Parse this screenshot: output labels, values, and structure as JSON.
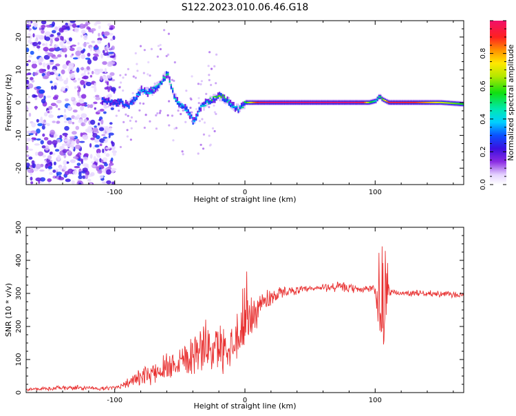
{
  "title": "S122.2023.010.06.46.G18",
  "chart_data": [
    {
      "type": "heatmap",
      "xlabel": "Height of straight line (km)",
      "ylabel": "Frequency (Hz)",
      "xlim": [
        -168,
        168
      ],
      "ylim": [
        -25,
        25
      ],
      "x_tick_labels": [
        "-100",
        "0",
        "100"
      ],
      "x_ticks": [
        -100,
        0,
        100
      ],
      "y_tick_labels": [
        "-20",
        "-10",
        "0",
        "10",
        "20"
      ],
      "y_ticks": [
        -20,
        -10,
        0,
        10,
        20
      ],
      "colorbar": {
        "label": "Normalized spectral amplitude",
        "range": [
          0,
          1
        ],
        "tick_labels": [
          "0.0",
          "0.2",
          "0.4",
          "0.6",
          "0.8"
        ],
        "ticks": [
          0.0,
          0.2,
          0.4,
          0.6,
          0.8
        ]
      },
      "ridge": {
        "x": [
          -140,
          -100,
          -95,
          -90,
          -85,
          -80,
          -75,
          -70,
          -65,
          -60,
          -55,
          -50,
          -45,
          -40,
          -35,
          -30,
          -25,
          -20,
          -15,
          -10,
          -5,
          0,
          5,
          10,
          20,
          40,
          60,
          80,
          90,
          95,
          100,
          103,
          105,
          110,
          130,
          150,
          168
        ],
        "freq": [
          2,
          0,
          0,
          -1,
          1,
          4,
          3,
          4,
          6,
          9,
          2,
          -1,
          -2,
          -6,
          -2,
          0,
          1,
          2,
          1,
          -1,
          -2,
          0,
          0,
          0,
          0,
          0,
          0,
          0,
          0,
          0,
          0.5,
          2,
          1,
          0,
          0,
          0,
          -0.5
        ],
        "amplitude": [
          0.25,
          0.2,
          0.3,
          0.3,
          0.35,
          0.4,
          0.4,
          0.45,
          0.45,
          0.5,
          0.45,
          0.4,
          0.4,
          0.35,
          0.4,
          0.45,
          0.55,
          0.6,
          0.5,
          0.4,
          0.45,
          0.55,
          0.8,
          0.95,
          1.0,
          1.0,
          1.0,
          1.0,
          0.95,
          0.6,
          0.45,
          0.5,
          0.6,
          0.95,
          0.9,
          0.7,
          0.55
        ]
      }
    },
    {
      "type": "line",
      "xlabel": "Height of straight line (km)",
      "ylabel": "SNR (10 * v/v)",
      "xlim": [
        -168,
        168
      ],
      "ylim": [
        0,
        500
      ],
      "x_tick_labels": [
        "-100",
        "0",
        "100"
      ],
      "x_ticks": [
        -100,
        0,
        100
      ],
      "y_tick_labels": [
        "0",
        "100",
        "200",
        "300",
        "400",
        "500"
      ],
      "y_ticks": [
        0,
        100,
        200,
        300,
        400,
        500
      ],
      "color": "#e83030",
      "x": [
        -168,
        -150,
        -130,
        -110,
        -100,
        -90,
        -80,
        -70,
        -60,
        -50,
        -40,
        -30,
        -20,
        -10,
        -5,
        0,
        5,
        10,
        20,
        30,
        40,
        50,
        60,
        70,
        80,
        90,
        95,
        100,
        103,
        106,
        108,
        110,
        112,
        120,
        130,
        140,
        150,
        160,
        168
      ],
      "y": [
        10,
        12,
        15,
        12,
        15,
        30,
        45,
        60,
        80,
        100,
        120,
        140,
        130,
        150,
        180,
        200,
        230,
        260,
        290,
        305,
        310,
        312,
        318,
        320,
        315,
        312,
        315,
        310,
        250,
        220,
        280,
        310,
        305,
        300,
        302,
        300,
        298,
        296,
        295
      ],
      "spread": [
        5,
        6,
        8,
        5,
        6,
        15,
        25,
        35,
        45,
        55,
        65,
        75,
        75,
        70,
        80,
        120,
        65,
        50,
        30,
        15,
        12,
        10,
        12,
        18,
        14,
        10,
        12,
        15,
        120,
        150,
        140,
        20,
        10,
        8,
        10,
        8,
        10,
        10,
        10
      ]
    }
  ]
}
